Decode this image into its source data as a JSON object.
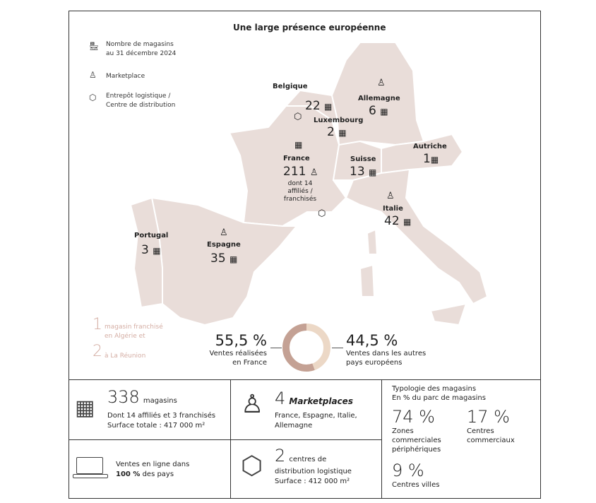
{
  "title": "Une large présence européenne",
  "legend": [
    {
      "icon": "store-icon",
      "label_1": "Nombre de magasins",
      "label_2": "au 31 décembre 2024"
    },
    {
      "icon": "shopping-bag-icon",
      "label_1": "Marketplace"
    },
    {
      "icon": "box-icon",
      "label_1": "Entrepôt logistique /",
      "label_2": "Centre de distribution"
    }
  ],
  "countries": {
    "belgique": {
      "name": "Belgique",
      "stores": "22"
    },
    "allemagne": {
      "name": "Allemagne",
      "stores": "6"
    },
    "luxembourg": {
      "name": "Luxembourg",
      "stores": "2"
    },
    "autriche": {
      "name": "Autriche",
      "stores": "1"
    },
    "france": {
      "name": "France",
      "stores": "211",
      "note_1": "dont 14",
      "note_2": "affiliés / franchisés"
    },
    "suisse": {
      "name": "Suisse",
      "stores": "13"
    },
    "italie": {
      "name": "Italie",
      "stores": "42"
    },
    "portugal": {
      "name": "Portugal",
      "stores": "3"
    },
    "espagne": {
      "name": "Espagne",
      "stores": "35"
    }
  },
  "franchise": {
    "n1": "1",
    "t1a": "magasin franchisé",
    "t1b": "en Algérie et",
    "n2": "2",
    "t2": "à La Réunion"
  },
  "sales_split": {
    "france_pct": "55,5 %",
    "france_label_1": "Ventes réalisées",
    "france_label_2": "en France",
    "other_pct": "44,5 %",
    "other_label_1": "Ventes dans les autres",
    "other_label_2": "pays européens",
    "france_value": 55.5,
    "other_value": 44.5,
    "colors": {
      "france": "#c4a194",
      "other": "#ecd8c6"
    }
  },
  "stats": {
    "stores": {
      "num": "338",
      "unit": "magasins",
      "line1": "Dont 14 affiliés et 3 franchisés",
      "line2": "Surface totale : 417 000 m²"
    },
    "marketplaces": {
      "num": "4",
      "unit": "Marketplaces",
      "line1": "France, Espagne, Italie,",
      "line2": "Allemagne"
    },
    "online": {
      "line1": "Ventes en ligne dans",
      "bold": "100 %",
      "line2": "des pays"
    },
    "logistics": {
      "num": "2",
      "unit": "centres de",
      "line1": "distribution logistique",
      "line2": "Surface : 412 000 m²"
    },
    "typology": {
      "title_1": "Typologie des magasins",
      "title_2": "En % du parc de magasins",
      "items": [
        {
          "pct": "74 %",
          "l1": "Zones",
          "l2": "commerciales",
          "l3": "périphériques"
        },
        {
          "pct": "17 %",
          "l1": "Centres",
          "l2": "commerciaux"
        },
        {
          "pct": "9 %",
          "l1": "Centres villes"
        }
      ]
    }
  },
  "map_color": "#e9ddd9"
}
